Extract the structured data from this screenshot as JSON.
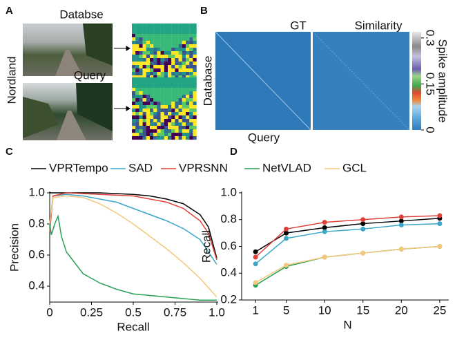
{
  "panel_labels": [
    "A",
    "B",
    "C",
    "D"
  ],
  "panel_a": {
    "ylabel": "Nordland",
    "images": [
      "Databse",
      "Query"
    ]
  },
  "panel_b": {
    "matrices": [
      "GT",
      "Similarity"
    ],
    "ylabel": "Database",
    "xlabel": "Query",
    "colorbar": {
      "label": "Spike amplitude",
      "ylim": [
        0,
        0.32
      ],
      "yticks": [
        0,
        0.15,
        0.3
      ]
    }
  },
  "chart_data": [
    {
      "type": "line",
      "xlabel": "Recall",
      "ylabel": "Precision",
      "xlim": [
        0,
        1
      ],
      "xticks": [
        0,
        0.25,
        0.5,
        0.75,
        {
          "value": 1,
          "label": "1.0"
        }
      ],
      "ylim": [
        0.3,
        1.0
      ],
      "yticks": [
        0.4,
        0.6,
        0.8,
        {
          "value": 1,
          "label": "1.0"
        }
      ],
      "series": [
        {
          "name": "VPRTempo",
          "color": "#000000",
          "x": [
            0,
            0.02,
            0.1,
            0.3,
            0.5,
            0.6,
            0.7,
            0.8,
            0.9,
            0.95,
            1.0
          ],
          "values": [
            1.0,
            1.0,
            1.0,
            1.0,
            0.99,
            0.98,
            0.96,
            0.93,
            0.86,
            0.78,
            0.58
          ]
        },
        {
          "name": "SAD",
          "color": "#3aa6c8",
          "x": [
            0,
            0.02,
            0.1,
            0.2,
            0.3,
            0.4,
            0.5,
            0.6,
            0.7,
            0.8,
            0.9,
            1.0
          ],
          "values": [
            0.8,
            0.98,
            0.99,
            0.98,
            0.96,
            0.94,
            0.9,
            0.86,
            0.82,
            0.77,
            0.7,
            0.54
          ]
        },
        {
          "name": "VPRSNN",
          "color": "#e0403a",
          "x": [
            0,
            0.02,
            0.1,
            0.3,
            0.5,
            0.6,
            0.7,
            0.8,
            0.9,
            0.95,
            1.0
          ],
          "values": [
            0.75,
            0.98,
            1.0,
            0.99,
            0.98,
            0.96,
            0.94,
            0.9,
            0.82,
            0.74,
            0.57
          ]
        },
        {
          "name": "NetVLAD",
          "color": "#27a055",
          "x": [
            0,
            0.01,
            0.03,
            0.05,
            0.07,
            0.1,
            0.15,
            0.2,
            0.3,
            0.4,
            0.5,
            0.6,
            0.7,
            0.8,
            0.9,
            1.0
          ],
          "values": [
            0.8,
            0.73,
            0.8,
            0.85,
            0.72,
            0.62,
            0.55,
            0.48,
            0.42,
            0.38,
            0.35,
            0.34,
            0.33,
            0.32,
            0.31,
            0.31
          ]
        },
        {
          "name": "GCL",
          "color": "#f5c77a",
          "x": [
            0,
            0.02,
            0.1,
            0.2,
            0.3,
            0.4,
            0.5,
            0.6,
            0.7,
            0.8,
            0.9,
            1.0
          ],
          "values": [
            0.8,
            0.97,
            0.98,
            0.97,
            0.93,
            0.87,
            0.8,
            0.72,
            0.64,
            0.55,
            0.45,
            0.33
          ]
        }
      ]
    },
    {
      "type": "line",
      "markers": true,
      "xlabel": "N",
      "ylabel": "Recall",
      "x": [
        1,
        5,
        10,
        15,
        20,
        25
      ],
      "xlim": [
        0,
        26
      ],
      "xticks": [
        1,
        5,
        10,
        15,
        20,
        25
      ],
      "ylim": [
        0.2,
        1.0
      ],
      "yticks": [
        0.2,
        0.4,
        0.6,
        0.8,
        {
          "value": 1,
          "label": "1.0"
        }
      ],
      "series": [
        {
          "color": "#000000",
          "values": [
            0.56,
            0.7,
            0.74,
            0.77,
            0.79,
            0.81
          ]
        },
        {
          "color": "#3aa6c8",
          "values": [
            0.47,
            0.66,
            0.71,
            0.73,
            0.76,
            0.77
          ]
        },
        {
          "color": "#e0403a",
          "values": [
            0.52,
            0.73,
            0.78,
            0.8,
            0.82,
            0.83
          ]
        },
        {
          "color": "#27a055",
          "values": [
            0.31,
            0.45,
            0.52,
            0.55,
            0.58,
            0.6
          ]
        },
        {
          "color": "#f5c77a",
          "values": [
            0.33,
            0.46,
            0.52,
            0.55,
            0.58,
            0.6
          ]
        }
      ]
    }
  ]
}
